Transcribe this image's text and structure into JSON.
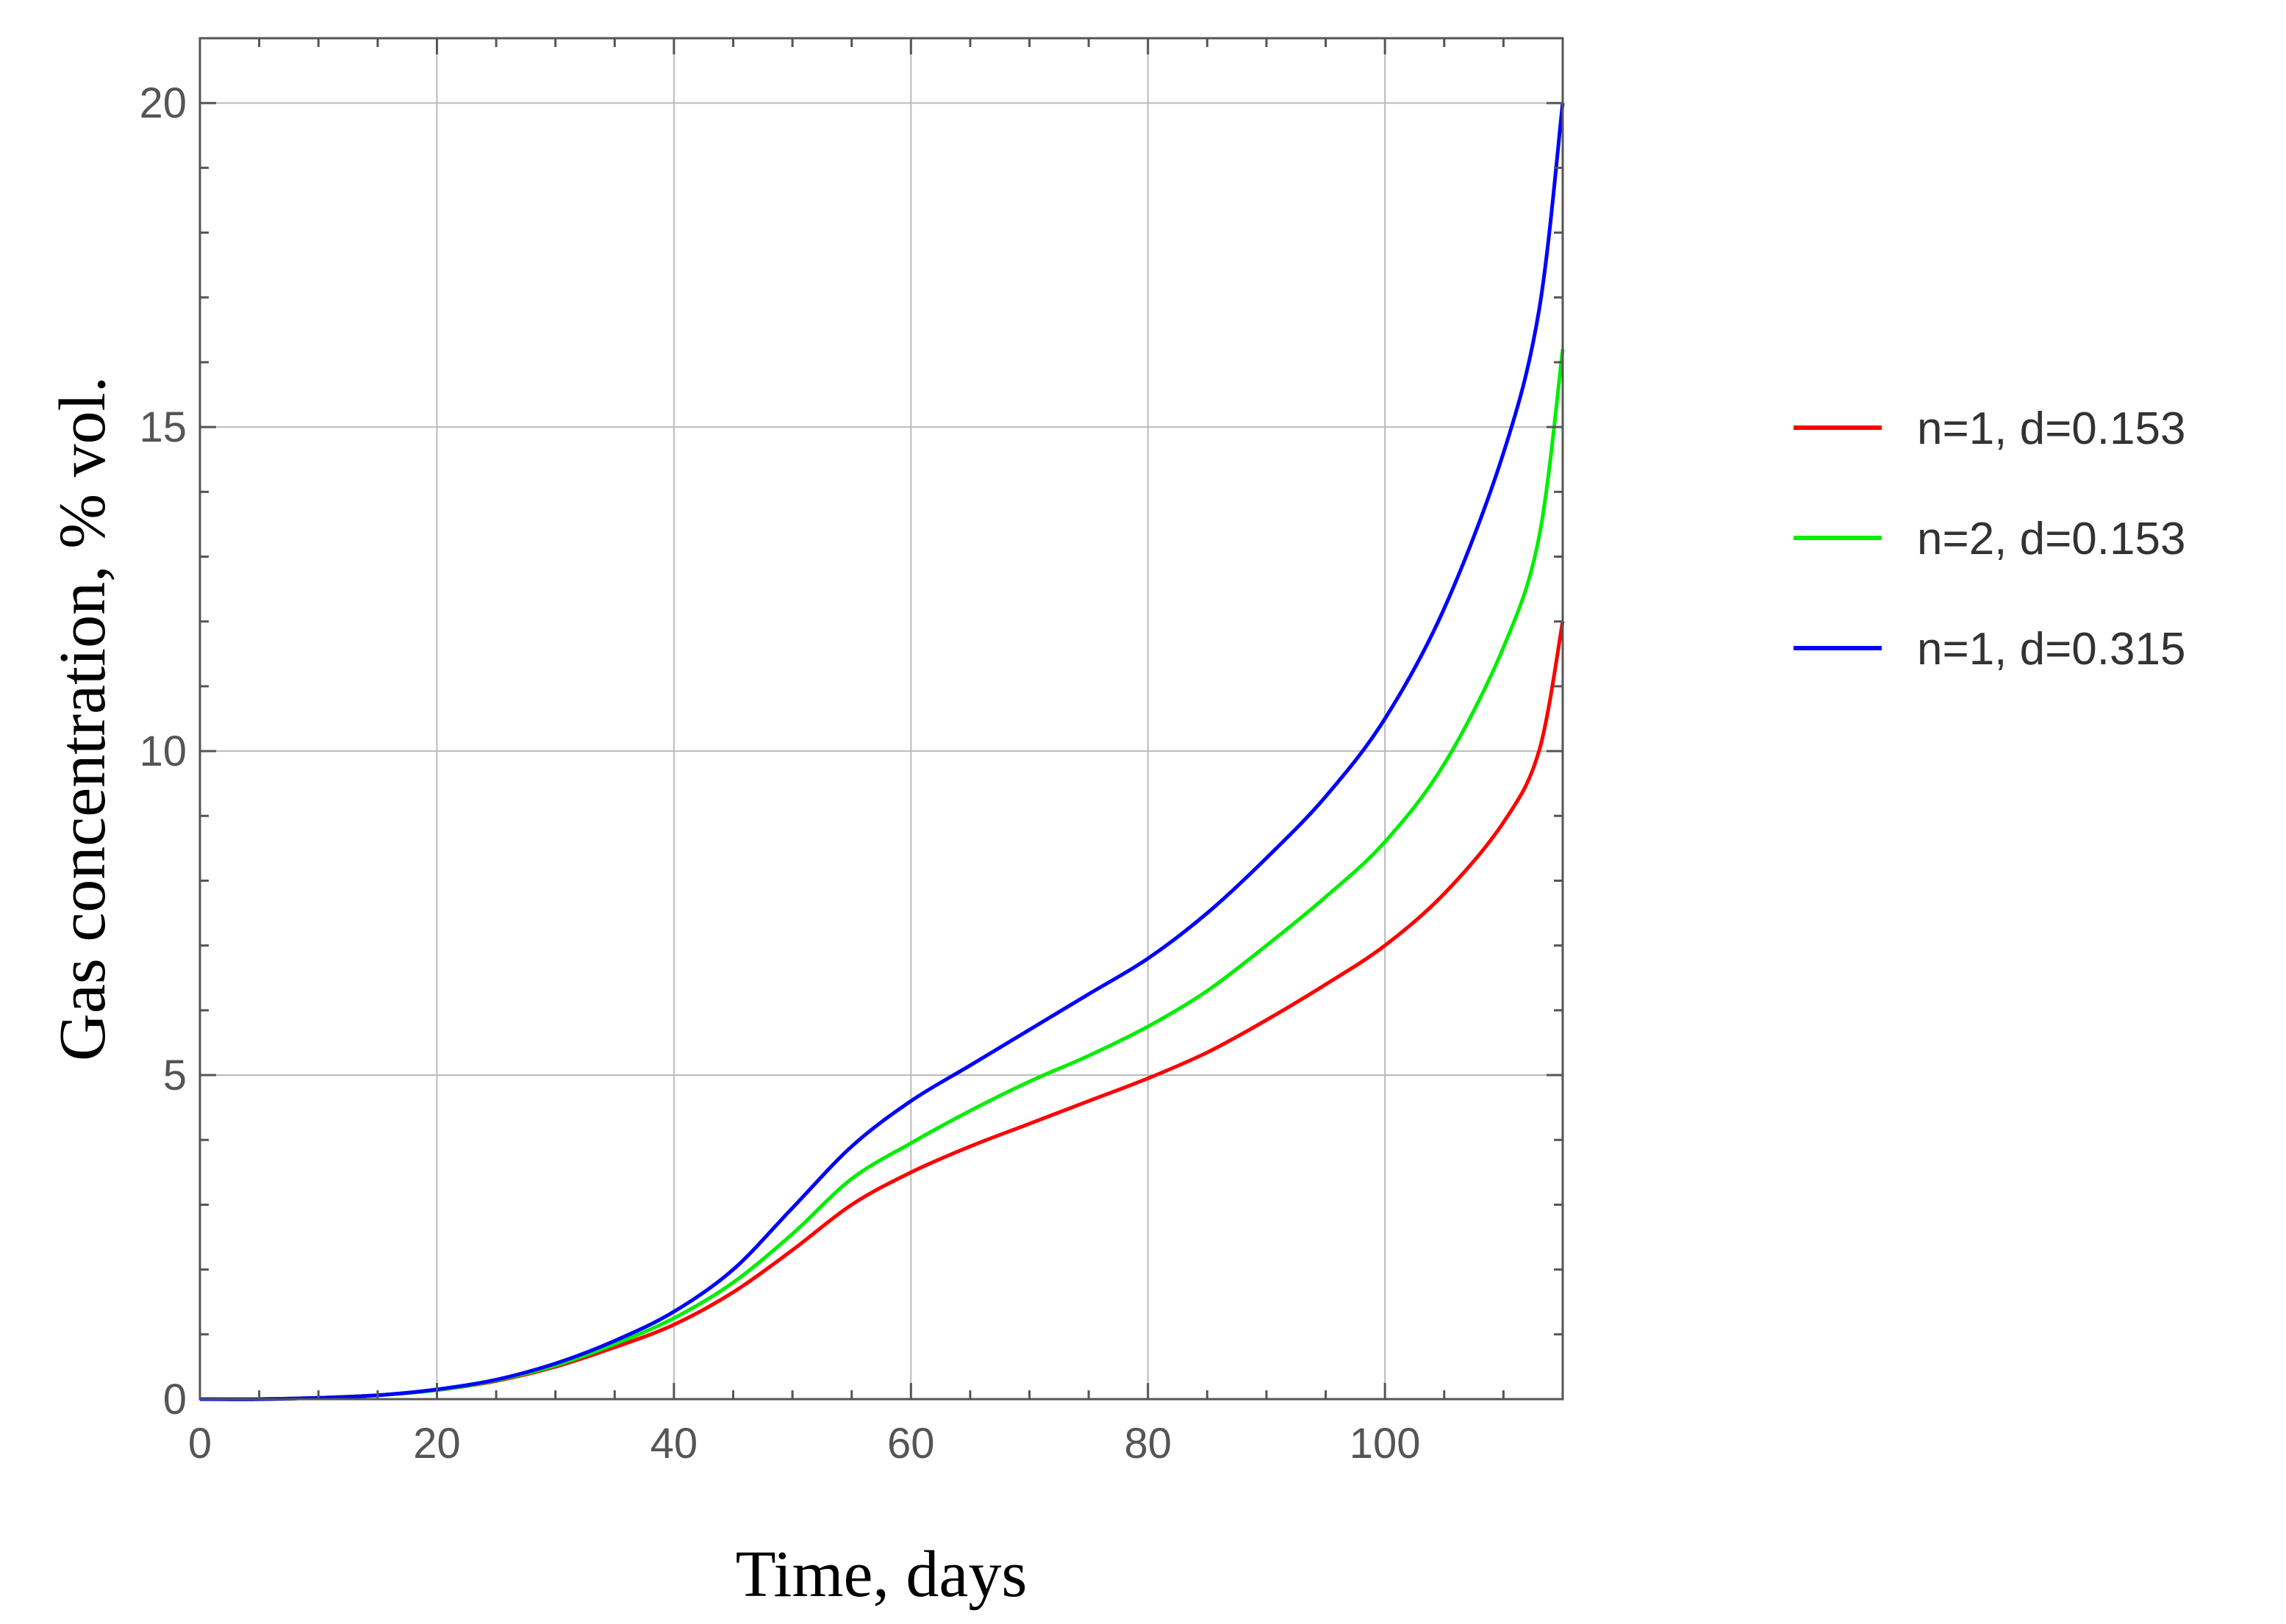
{
  "chart_data": {
    "type": "line",
    "title": "",
    "xlabel": "Time, days",
    "ylabel": "Gas concentration, % vol.",
    "xlim": [
      0,
      115
    ],
    "ylim": [
      0,
      21
    ],
    "xticks": [
      0,
      20,
      40,
      60,
      80,
      100
    ],
    "yticks": [
      0,
      5,
      10,
      15,
      20
    ],
    "grid": true,
    "legend_position": "right",
    "x": [
      0,
      5,
      10,
      15,
      20,
      25,
      30,
      35,
      40,
      45,
      50,
      55,
      60,
      65,
      70,
      75,
      80,
      85,
      90,
      95,
      100,
      105,
      110,
      113,
      115
    ],
    "series": [
      {
        "name": "n=1, d=0.153",
        "color": "#ff0000",
        "values": [
          0,
          0.0,
          0.02,
          0.06,
          0.14,
          0.28,
          0.5,
          0.8,
          1.15,
          1.65,
          2.3,
          3.0,
          3.5,
          3.9,
          4.25,
          4.6,
          4.95,
          5.35,
          5.85,
          6.4,
          7.0,
          7.8,
          8.9,
          10.0,
          12.0
        ]
      },
      {
        "name": "n=2, d=0.153",
        "color": "#00ee00",
        "values": [
          0,
          0.0,
          0.02,
          0.06,
          0.14,
          0.29,
          0.52,
          0.85,
          1.25,
          1.8,
          2.55,
          3.4,
          3.95,
          4.45,
          4.9,
          5.3,
          5.75,
          6.3,
          7.0,
          7.75,
          8.6,
          9.8,
          11.6,
          13.3,
          16.2
        ]
      },
      {
        "name": "n=1, d=0.315",
        "color": "#0000ff",
        "values": [
          0,
          0.0,
          0.02,
          0.06,
          0.15,
          0.3,
          0.55,
          0.9,
          1.35,
          2.0,
          2.95,
          3.9,
          4.6,
          5.15,
          5.7,
          6.25,
          6.8,
          7.5,
          8.35,
          9.3,
          10.5,
          12.2,
          14.6,
          16.8,
          20.0
        ]
      }
    ]
  }
}
